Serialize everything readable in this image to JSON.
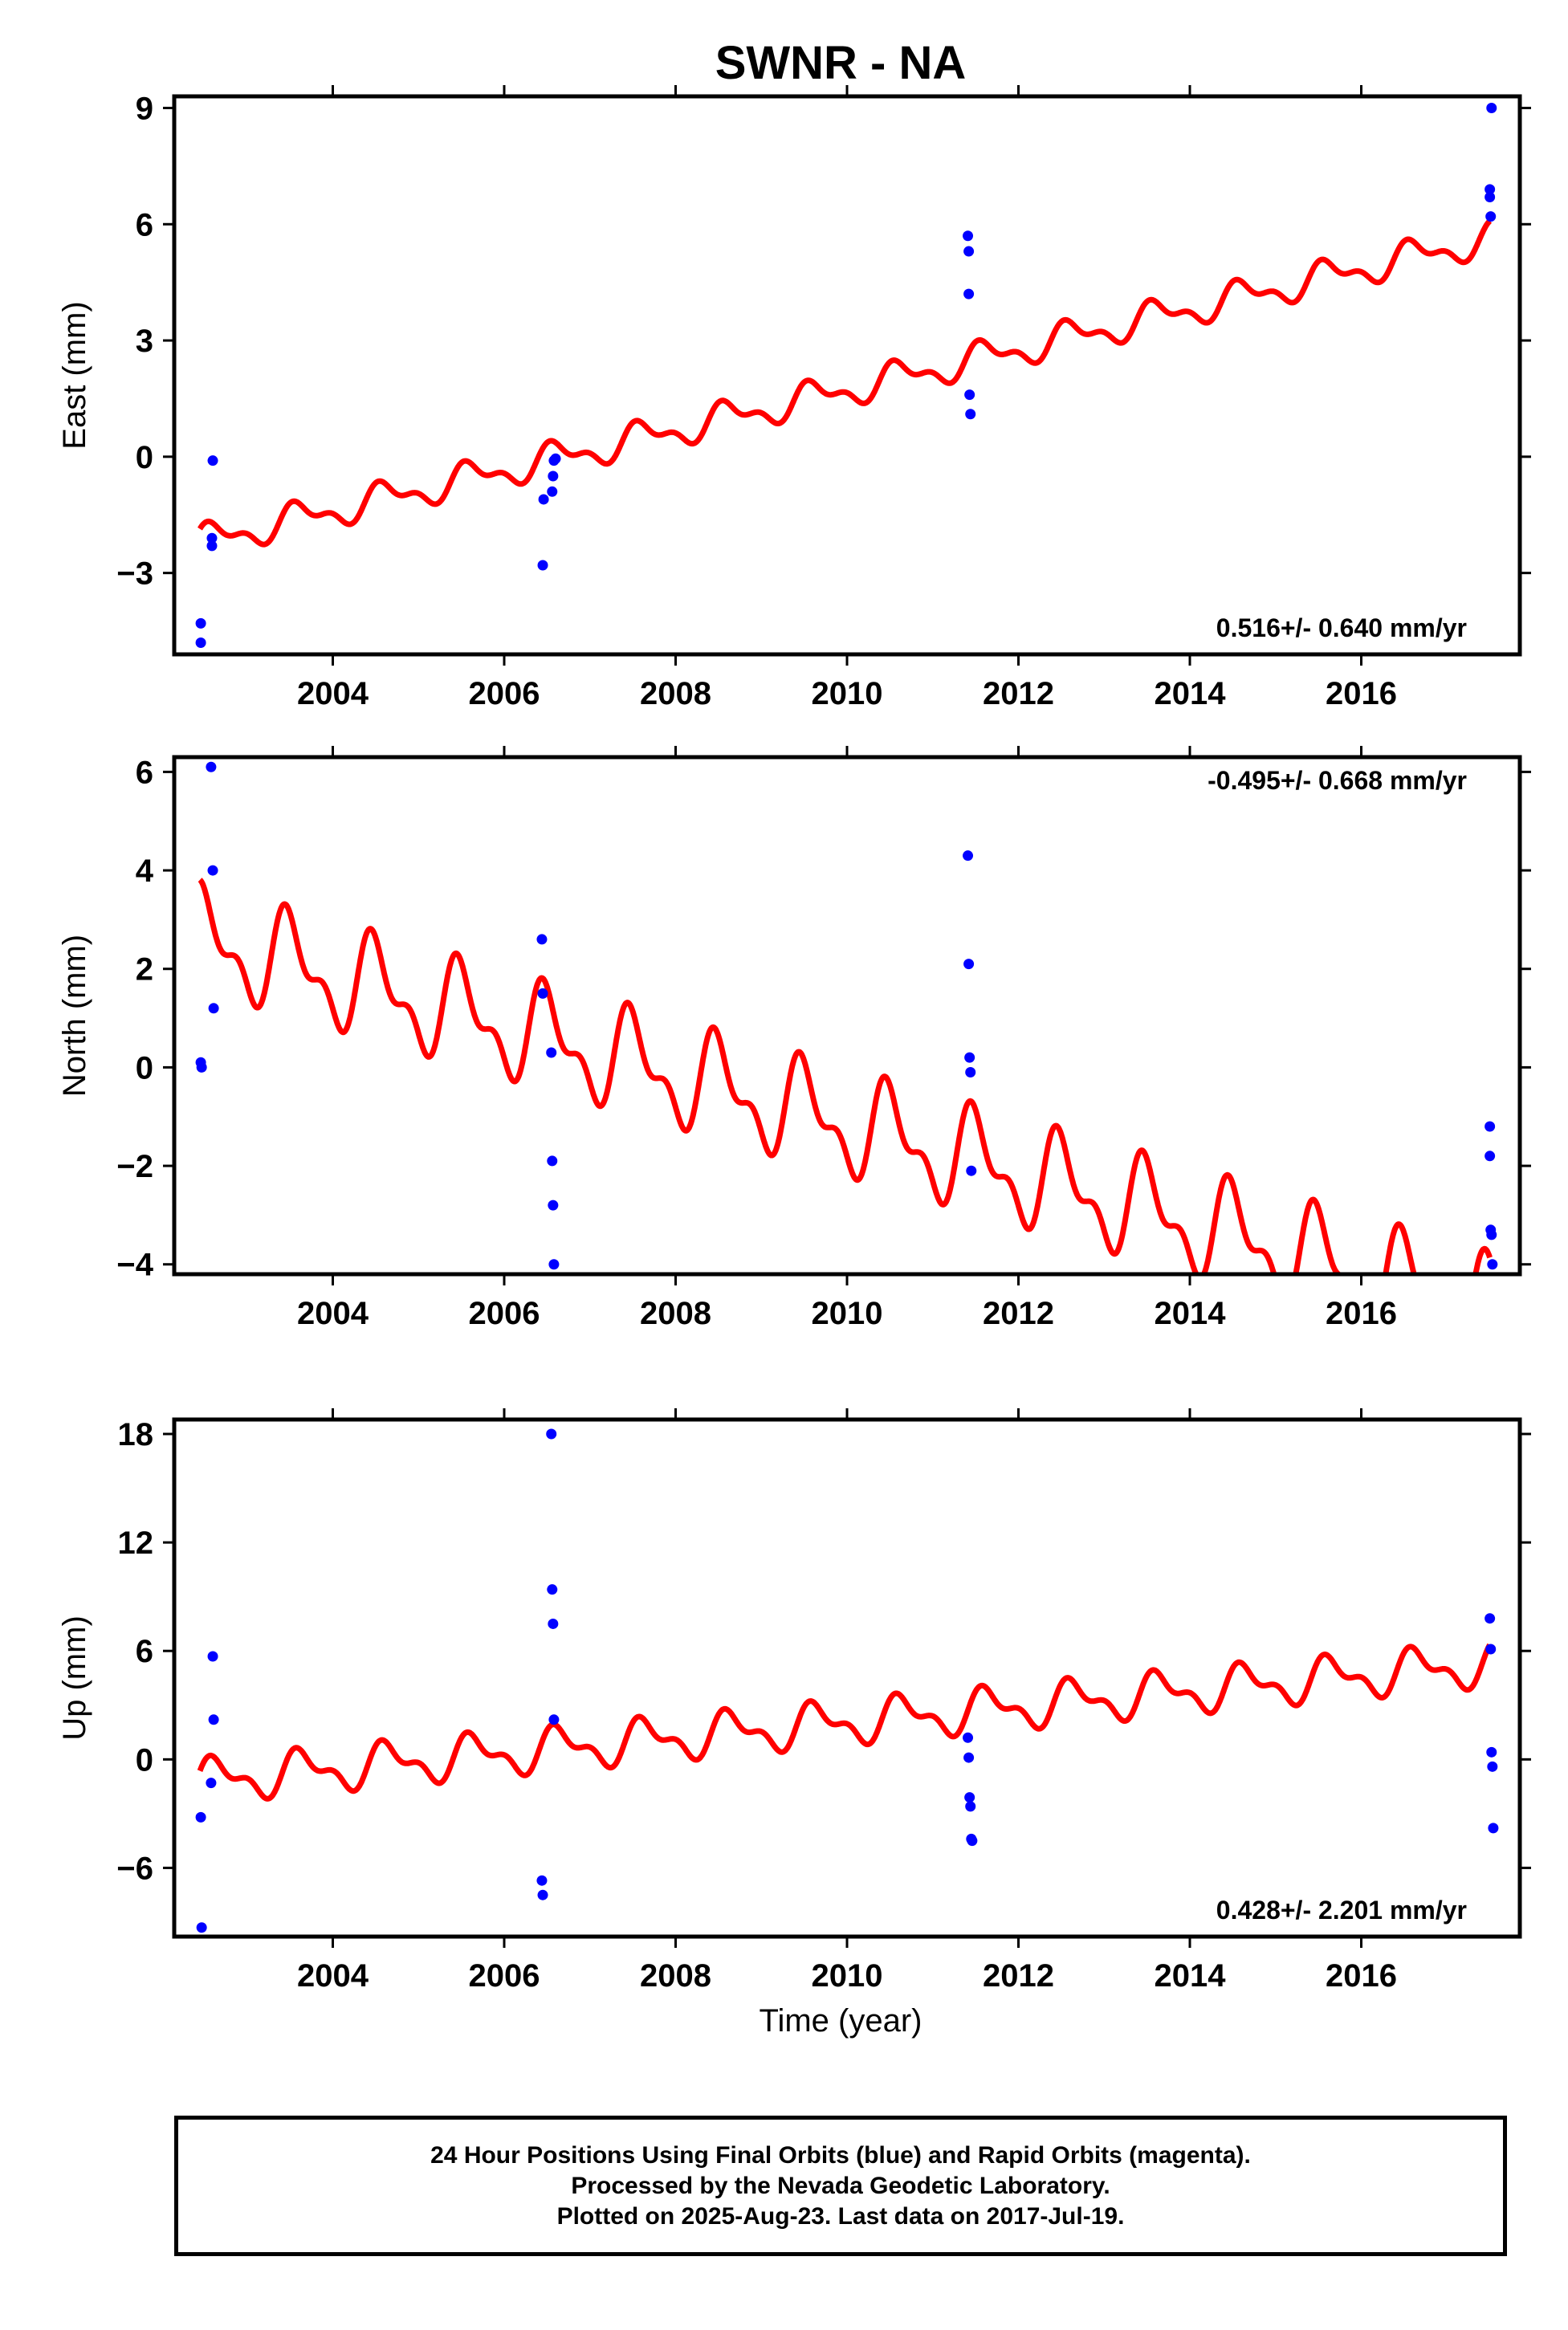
{
  "chart_data": {
    "type": "scatter",
    "title": "SWNR - NA",
    "xlabel": "Time (year)",
    "xlim": [
      2002.15,
      2017.85
    ],
    "x_ticks": [
      2004,
      2006,
      2008,
      2010,
      2012,
      2014,
      2016
    ],
    "x_tick_labels": [
      "2004",
      "2006",
      "2008",
      "2010",
      "2012",
      "2014",
      "2016"
    ],
    "series_colors": {
      "points": "#0000ff",
      "model": "#ff0000"
    },
    "panels": [
      {
        "name": "east",
        "ylabel": "East (mm)",
        "ylim": [
          -5.1,
          9.3
        ],
        "y_ticks": [
          -3,
          0,
          3,
          6,
          9
        ],
        "y_tick_labels": [
          "−3",
          "0",
          "3",
          "6",
          "9"
        ],
        "rate_text": "0.516+/- 0.640 mm/yr",
        "rate_position": "bottom-right",
        "model": {
          "t0": 2002.45,
          "y0": -2.2,
          "slope": 0.52,
          "amp": 0.35,
          "phase": 0.55
        },
        "points": {
          "x": [
            2002.46,
            2002.46,
            2002.59,
            2002.59,
            2002.6,
            2006.45,
            2006.46,
            2006.56,
            2006.57,
            2006.58,
            2006.6,
            2011.41,
            2011.42,
            2011.42,
            2011.43,
            2011.44,
            2017.5,
            2017.5,
            2017.51,
            2017.52
          ],
          "y": [
            -4.3,
            -4.8,
            -2.3,
            -2.1,
            -0.1,
            -2.8,
            -1.1,
            -0.9,
            -0.5,
            -0.1,
            -0.05,
            5.7,
            5.3,
            4.2,
            1.6,
            1.1,
            6.9,
            6.7,
            6.2,
            9.0
          ]
        }
      },
      {
        "name": "north",
        "ylabel": "North (mm)",
        "ylim": [
          -4.2,
          6.3
        ],
        "y_ticks": [
          -4,
          -2,
          0,
          2,
          4,
          6
        ],
        "y_tick_labels": [
          "−4",
          "−2",
          "0",
          "2",
          "4",
          "6"
        ],
        "rate_text": "-0.495+/- 0.668 mm/yr",
        "rate_position": "top-right",
        "model": {
          "t0": 2002.45,
          "y0": 2.6,
          "slope": -0.5,
          "amp": 0.85,
          "phase": 1.2
        },
        "points": {
          "x": [
            2002.46,
            2002.47,
            2002.58,
            2002.6,
            2002.61,
            2006.44,
            2006.45,
            2006.55,
            2006.56,
            2006.57,
            2006.58,
            2011.41,
            2011.42,
            2011.43,
            2011.44,
            2011.45,
            2017.5,
            2017.5,
            2017.51,
            2017.52,
            2017.53
          ],
          "y": [
            0.1,
            0.0,
            6.1,
            4.0,
            1.2,
            2.6,
            1.5,
            0.3,
            -1.9,
            -2.8,
            -4.0,
            4.3,
            2.1,
            0.2,
            -0.1,
            -2.1,
            -1.2,
            -1.8,
            -3.3,
            -3.4,
            -4.0
          ]
        }
      },
      {
        "name": "up",
        "ylabel": "Up (mm)",
        "ylim": [
          -9.8,
          18.8
        ],
        "y_ticks": [
          -6,
          0,
          6,
          12,
          18
        ],
        "y_tick_labels": [
          "−6",
          "0",
          "6",
          "12",
          "18"
        ],
        "rate_text": "0.428+/- 2.201 mm/yr",
        "rate_position": "bottom-right",
        "model": {
          "t0": 2002.45,
          "y0": -1.2,
          "slope": 0.43,
          "amp": 1.0,
          "phase": 0.3
        },
        "points": {
          "x": [
            2002.46,
            2002.47,
            2002.58,
            2002.6,
            2002.61,
            2006.44,
            2006.45,
            2006.55,
            2006.56,
            2006.57,
            2006.58,
            2011.41,
            2011.42,
            2011.43,
            2011.44,
            2011.45,
            2011.46,
            2017.5,
            2017.51,
            2017.52,
            2017.53,
            2017.54
          ],
          "y": [
            -3.2,
            -9.3,
            -1.3,
            5.7,
            2.2,
            -6.7,
            -7.5,
            18.0,
            9.4,
            7.5,
            2.2,
            1.2,
            0.1,
            -2.1,
            -2.6,
            -4.4,
            -4.5,
            7.8,
            6.1,
            0.4,
            -0.4,
            -3.8
          ]
        }
      }
    ]
  },
  "footer": {
    "line1": "24 Hour Positions Using Final Orbits (blue) and Rapid Orbits (magenta).",
    "line2": "Processed by the Nevada Geodetic Laboratory.",
    "line3": "Plotted on 2025-Aug-23. Last data on 2017-Jul-19."
  }
}
